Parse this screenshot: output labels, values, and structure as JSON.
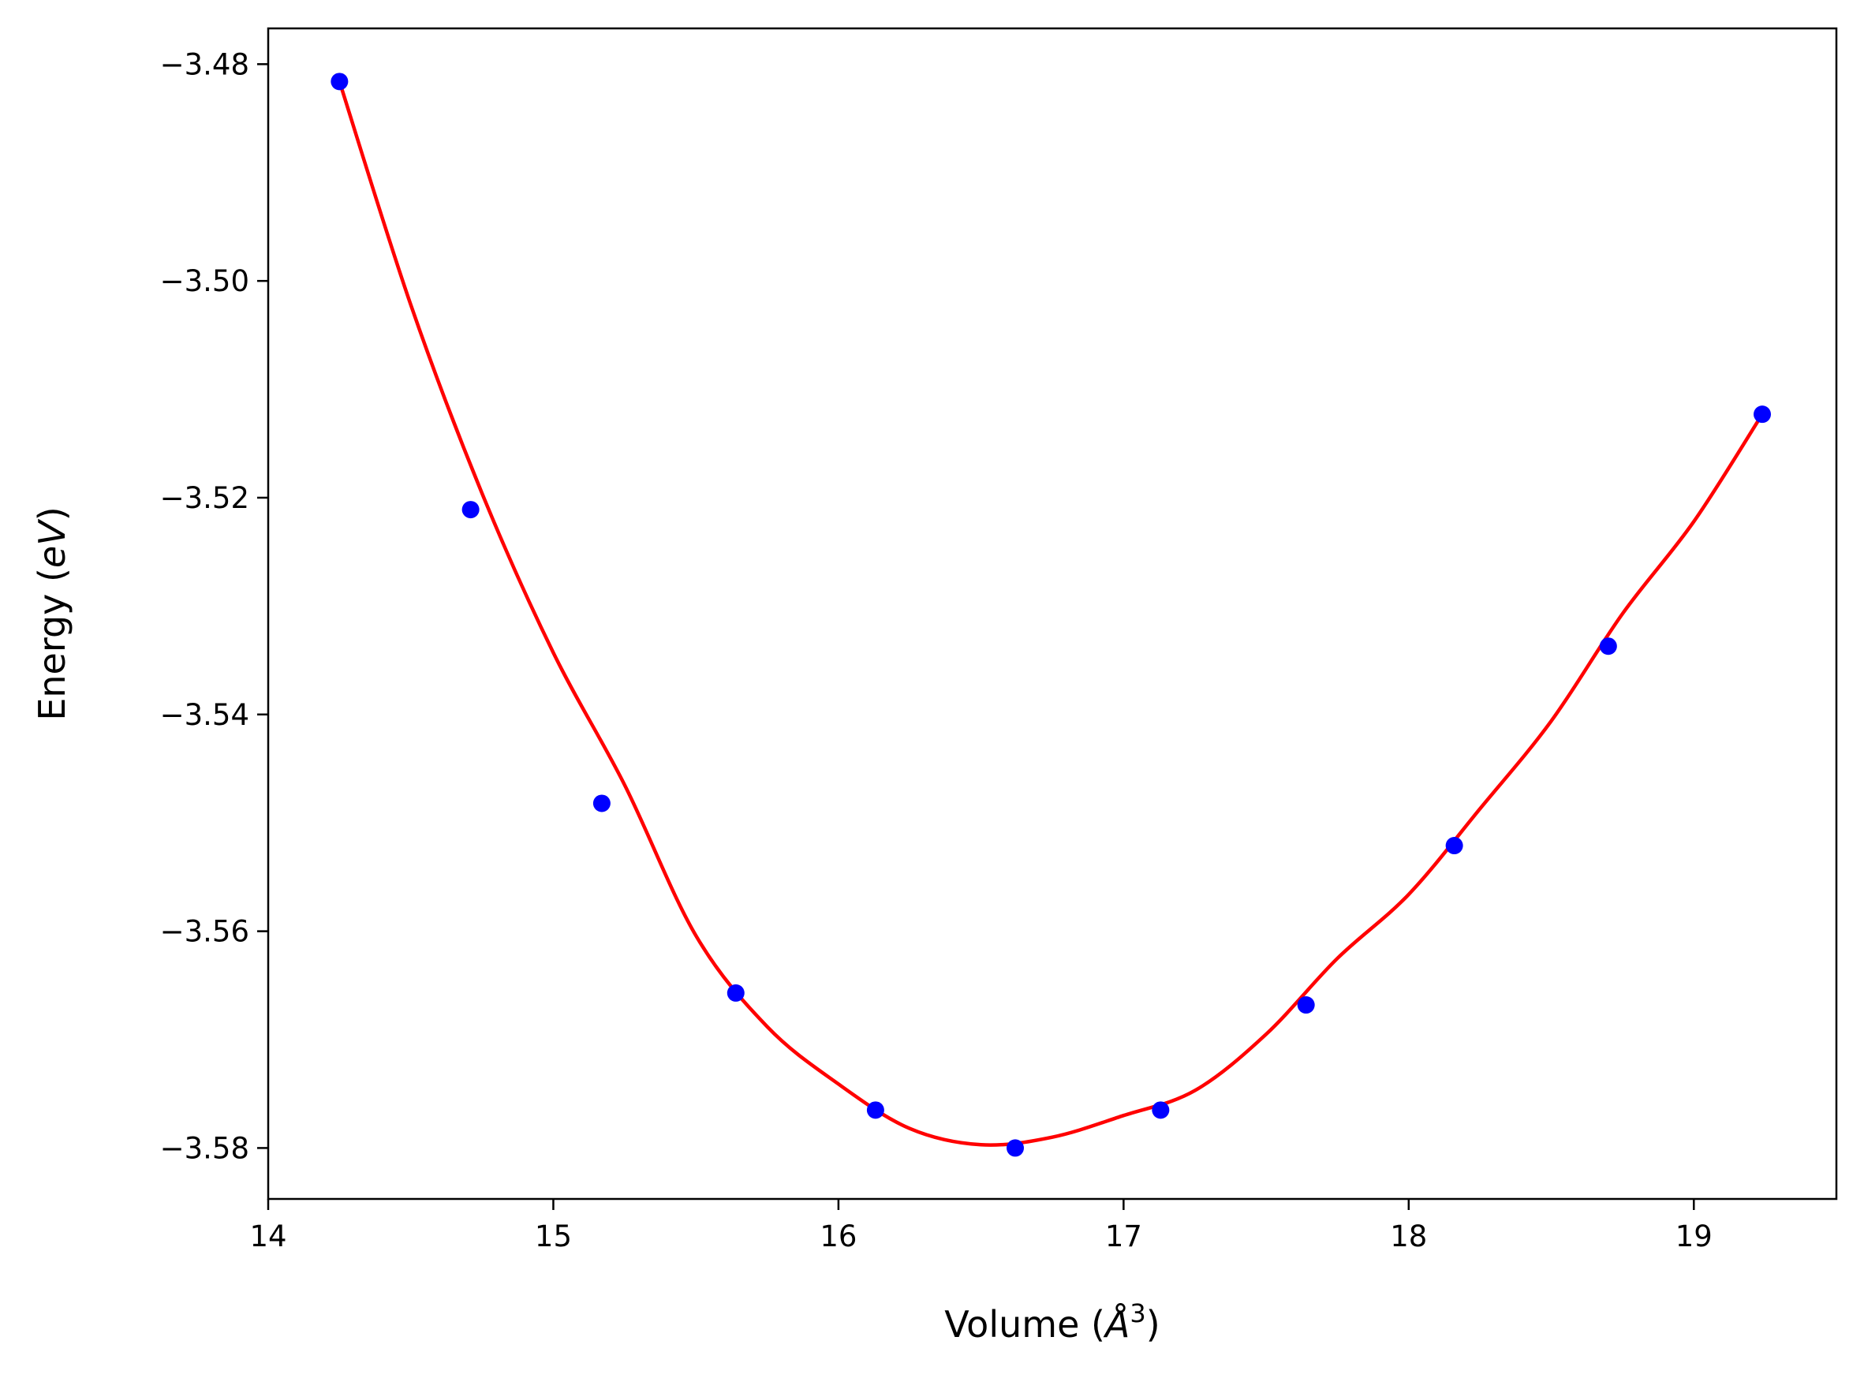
{
  "chart_data": {
    "type": "scatter",
    "title": "",
    "xlabel": {
      "prefix": "Volume (",
      "symbol": "Å",
      "exponent": "3",
      "suffix": ")"
    },
    "ylabel": {
      "prefix": "Energy (",
      "unit": "eV",
      "suffix": ")"
    },
    "xlim": [
      14.0,
      19.5
    ],
    "ylim": [
      -3.5847,
      -3.4767
    ],
    "x_ticks": [
      14,
      15,
      16,
      17,
      18,
      19
    ],
    "x_tick_labels": [
      "14",
      "15",
      "16",
      "17",
      "18",
      "19"
    ],
    "y_ticks": [
      -3.48,
      -3.5,
      -3.52,
      -3.54,
      -3.56,
      -3.58
    ],
    "y_tick_labels": [
      "−3.48",
      "−3.50",
      "−3.52",
      "−3.54",
      "−3.56",
      "−3.58"
    ],
    "grid": false,
    "legend": "none",
    "series": [
      {
        "kind": "points",
        "color": "#0000ff",
        "x": [
          14.25,
          14.71,
          15.17,
          15.64,
          16.13,
          16.62,
          17.13,
          17.64,
          18.16,
          18.7,
          19.24
        ],
        "y": [
          -3.4816,
          -3.5211,
          -3.5482,
          -3.5657,
          -3.5765,
          -3.58,
          -3.5765,
          -3.5668,
          -3.5521,
          -3.5337,
          -3.5123
        ]
      },
      {
        "kind": "fit-curve",
        "color": "#ff0000",
        "x": [
          14.25,
          14.5,
          14.75,
          15.0,
          15.25,
          15.5,
          15.75,
          16.0,
          16.25,
          16.5,
          16.75,
          17.0,
          17.25,
          17.5,
          17.75,
          18.0,
          18.25,
          18.5,
          18.75,
          19.0,
          19.24
        ],
        "y": [
          -3.4816,
          -3.5022,
          -3.5196,
          -3.5343,
          -3.5465,
          -3.5604,
          -3.5688,
          -3.5741,
          -3.5782,
          -3.5797,
          -3.579,
          -3.577,
          -3.5747,
          -3.5695,
          -3.5625,
          -3.5566,
          -3.5487,
          -3.5406,
          -3.5307,
          -3.5222,
          -3.5123
        ]
      }
    ]
  }
}
